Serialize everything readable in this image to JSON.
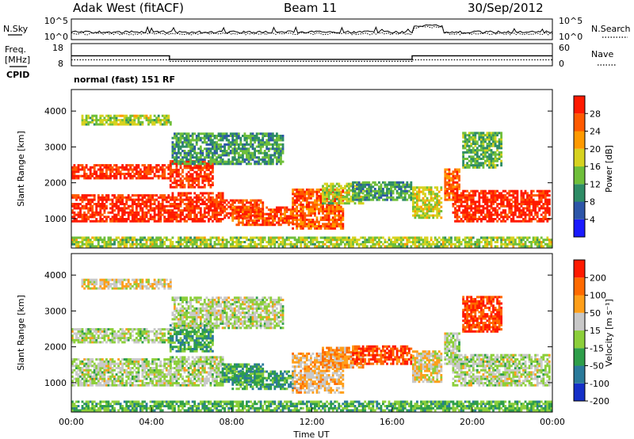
{
  "header": {
    "station": "Adak West (fitACF)",
    "beam": "Beam 11",
    "date": "30/Sep/2012"
  },
  "noise_panel": {
    "left_label": "N.Sky",
    "right_label": "N.Search",
    "left_ticks": [
      "10^5",
      "10^0"
    ],
    "right_ticks": [
      "10^5",
      "10^0"
    ]
  },
  "freq_panel": {
    "left_label_1": "Freq.",
    "left_label_2": "[MHz]",
    "cpid_label": "CPID",
    "right_label": "Nave",
    "left_ticks": [
      "18",
      "8"
    ],
    "right_ticks": [
      "60",
      "0"
    ],
    "cpid_name": "normal (fast) 151 RF",
    "freq_mhz": [
      {
        "t0": 0.0,
        "t1": 4.9,
        "f": 12.5
      },
      {
        "t0": 4.9,
        "t1": 17.0,
        "f": 10.9
      },
      {
        "t0": 17.0,
        "t1": 24.0,
        "f": 12.5
      }
    ],
    "nave": [
      {
        "t0": 0.0,
        "t1": 4.9,
        "n": 16
      },
      {
        "t0": 4.9,
        "t1": 17.0,
        "n": 12
      },
      {
        "t0": 17.0,
        "t1": 24.0,
        "n": 16
      }
    ]
  },
  "x_axis": {
    "label": "Time UT",
    "ticks": [
      "00:00",
      "04:00",
      "08:00",
      "12:00",
      "16:00",
      "20:00",
      "00:00"
    ]
  },
  "chart_data": [
    {
      "type": "heatmap",
      "name": "power",
      "ylabel": "Slant Range [km]",
      "ylim": [
        180,
        4600
      ],
      "xlim": [
        0,
        24
      ],
      "yticks": [
        "1000",
        "2000",
        "3000",
        "4000"
      ],
      "colorbar_label": "Power [dB]",
      "colorbar_ticks": [
        "28",
        "24",
        "20",
        "16",
        "12",
        "8",
        "4"
      ],
      "colorbar_colors": [
        "#1a1aff",
        "#2d56a8",
        "#2e8c66",
        "#6fbf3a",
        "#d7d21f",
        "#ff9a00",
        "#ff5a00",
        "#ff1a00"
      ],
      "regions": [
        {
          "t0": 0.0,
          "t1": 4.9,
          "r0": 900,
          "r1": 1650,
          "level": 0.95
        },
        {
          "t0": 0.0,
          "t1": 4.9,
          "r0": 2100,
          "r1": 2500,
          "level": 0.9
        },
        {
          "t0": 0.5,
          "t1": 4.9,
          "r0": 3600,
          "r1": 3900,
          "level": 0.5
        },
        {
          "t0": 4.9,
          "t1": 7.5,
          "r0": 900,
          "r1": 1700,
          "level": 0.92
        },
        {
          "t0": 4.9,
          "t1": 7.0,
          "r0": 1850,
          "r1": 2600,
          "level": 0.9
        },
        {
          "t0": 7.5,
          "t1": 9.5,
          "r0": 1000,
          "r1": 1500,
          "level": 0.88
        },
        {
          "t0": 5.0,
          "t1": 10.5,
          "r0": 2500,
          "r1": 3400,
          "level": 0.35
        },
        {
          "t0": 8.0,
          "t1": 11.0,
          "r0": 800,
          "r1": 1300,
          "level": 0.85
        },
        {
          "t0": 11.0,
          "t1": 13.5,
          "r0": 700,
          "r1": 1800,
          "level": 0.8
        },
        {
          "t0": 12.5,
          "t1": 14.5,
          "r0": 1400,
          "r1": 2000,
          "level": 0.5
        },
        {
          "t0": 14.0,
          "t1": 17.0,
          "r0": 1500,
          "r1": 2000,
          "level": 0.35
        },
        {
          "t0": 17.0,
          "t1": 18.5,
          "r0": 1000,
          "r1": 1900,
          "level": 0.55
        },
        {
          "t0": 18.6,
          "t1": 19.4,
          "r0": 1500,
          "r1": 2400,
          "level": 0.8
        },
        {
          "t0": 19.0,
          "t1": 23.9,
          "r0": 900,
          "r1": 1800,
          "level": 0.95
        },
        {
          "t0": 19.5,
          "t1": 21.5,
          "r0": 2400,
          "r1": 3400,
          "level": 0.4
        },
        {
          "t0": 0.0,
          "t1": 24.0,
          "r0": 200,
          "r1": 500,
          "level": 0.5
        }
      ]
    },
    {
      "type": "heatmap",
      "name": "velocity",
      "ylabel": "Slant Range [km]",
      "ylim": [
        180,
        4600
      ],
      "xlim": [
        0,
        24
      ],
      "yticks": [
        "1000",
        "2000",
        "3000",
        "4000"
      ],
      "colorbar_label": "Velocity [m s⁻¹]",
      "colorbar_ticks": [
        "200",
        "100",
        "50",
        "15",
        "-15",
        "-50",
        "-100",
        "-200"
      ],
      "colorbar_colors": [
        "#1530c8",
        "#2a7a9a",
        "#2e9e4a",
        "#8ccf3a",
        "#c8c8c8",
        "#ff9f1a",
        "#ff6a00",
        "#ff1a00"
      ],
      "regions": [
        {
          "t0": 0.0,
          "t1": 4.9,
          "r0": 900,
          "r1": 1650,
          "level": 0.5
        },
        {
          "t0": 0.0,
          "t1": 4.9,
          "r0": 2100,
          "r1": 2500,
          "level": 0.5
        },
        {
          "t0": 0.5,
          "t1": 4.9,
          "r0": 3600,
          "r1": 3900,
          "level": 0.6
        },
        {
          "t0": 4.9,
          "t1": 7.5,
          "r0": 900,
          "r1": 1700,
          "level": 0.5
        },
        {
          "t0": 4.9,
          "t1": 7.0,
          "r0": 1850,
          "r1": 2600,
          "level": 0.3
        },
        {
          "t0": 7.5,
          "t1": 9.5,
          "r0": 1000,
          "r1": 1500,
          "level": 0.3
        },
        {
          "t0": 5.0,
          "t1": 10.5,
          "r0": 2500,
          "r1": 3400,
          "level": 0.5
        },
        {
          "t0": 8.0,
          "t1": 11.0,
          "r0": 800,
          "r1": 1300,
          "level": 0.3
        },
        {
          "t0": 11.0,
          "t1": 13.5,
          "r0": 700,
          "r1": 1800,
          "level": 0.65
        },
        {
          "t0": 12.5,
          "t1": 14.5,
          "r0": 1400,
          "r1": 2000,
          "level": 0.72
        },
        {
          "t0": 14.0,
          "t1": 17.0,
          "r0": 1500,
          "r1": 2000,
          "level": 0.88
        },
        {
          "t0": 17.0,
          "t1": 18.5,
          "r0": 1000,
          "r1": 1900,
          "level": 0.6
        },
        {
          "t0": 18.6,
          "t1": 19.4,
          "r0": 1500,
          "r1": 2400,
          "level": 0.5
        },
        {
          "t0": 19.0,
          "t1": 23.9,
          "r0": 900,
          "r1": 1800,
          "level": 0.5
        },
        {
          "t0": 19.5,
          "t1": 21.5,
          "r0": 2400,
          "r1": 3400,
          "level": 0.9
        },
        {
          "t0": 0.0,
          "t1": 24.0,
          "r0": 200,
          "r1": 500,
          "level": 0.35
        }
      ]
    }
  ]
}
